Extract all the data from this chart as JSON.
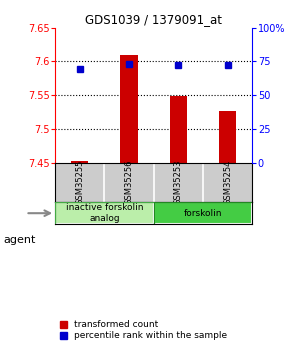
{
  "title": "GDS1039 / 1379091_at",
  "samples": [
    "GSM35255",
    "GSM35256",
    "GSM35253",
    "GSM35254"
  ],
  "bar_values": [
    7.452,
    7.61,
    7.549,
    7.527
  ],
  "dot_values_pct": [
    69.5,
    73.0,
    72.0,
    72.0
  ],
  "bar_bottom": 7.45,
  "ylim_left": [
    7.45,
    7.65
  ],
  "ylim_right": [
    0,
    100
  ],
  "yticks_left": [
    7.45,
    7.5,
    7.55,
    7.6,
    7.65
  ],
  "ytick_labels_left": [
    "7.45",
    "7.5",
    "7.55",
    "7.6",
    "7.65"
  ],
  "yticks_right": [
    0,
    25,
    50,
    75,
    100
  ],
  "ytick_labels_right": [
    "0",
    "25",
    "50",
    "75",
    "100%"
  ],
  "hgrid_lines": [
    7.5,
    7.55,
    7.6
  ],
  "bar_color": "#cc0000",
  "dot_color": "#0000cc",
  "groups": [
    {
      "label": "inactive forskolin\nanalog",
      "span": [
        0,
        2
      ],
      "facecolor": "#bbeeaa",
      "edgecolor": "#44aa44"
    },
    {
      "label": "forskolin",
      "span": [
        2,
        4
      ],
      "facecolor": "#44cc44",
      "edgecolor": "#228822"
    }
  ],
  "agent_label": "agent",
  "legend_items": [
    {
      "color": "#cc0000",
      "label": "transformed count"
    },
    {
      "color": "#0000cc",
      "label": "percentile rank within the sample"
    }
  ],
  "background_color": "#ffffff",
  "sample_box_color": "#cccccc",
  "bar_width": 0.35
}
